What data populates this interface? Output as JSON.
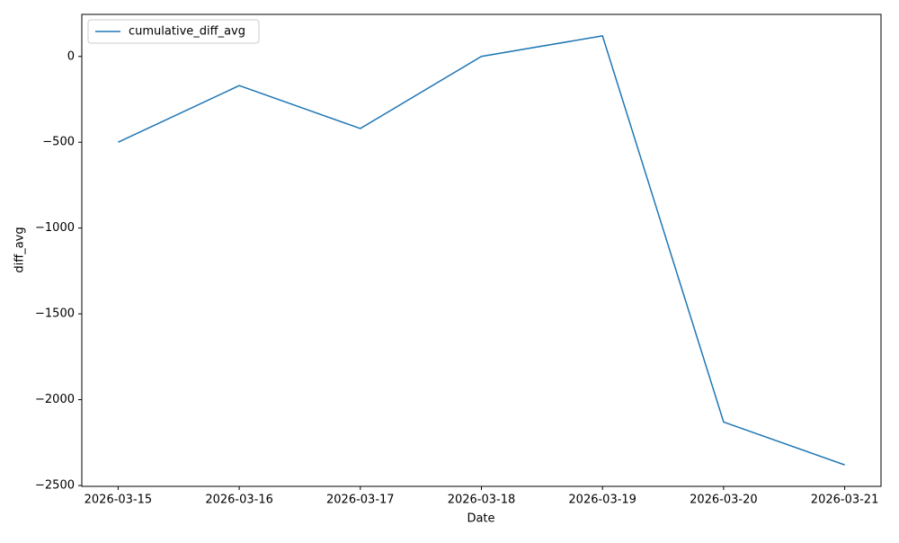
{
  "chart_data": {
    "type": "line",
    "x_label": "Date",
    "y_label": "diff_avg",
    "x": [
      "2026-03-15",
      "2026-03-16",
      "2026-03-17",
      "2026-03-18",
      "2026-03-19",
      "2026-03-20",
      "2026-03-21"
    ],
    "series": [
      {
        "name": "cumulative_diff_avg",
        "color": "#1f77b4",
        "values": [
          -500,
          -170,
          -420,
          0,
          120,
          -2130,
          -2380
        ]
      }
    ],
    "ylim": [
      -2505,
      245
    ],
    "yticks": [
      {
        "value": -2500,
        "label": "−2500"
      },
      {
        "value": -2000,
        "label": "−2000"
      },
      {
        "value": -1500,
        "label": "−1500"
      },
      {
        "value": -1000,
        "label": "−1000"
      },
      {
        "value": -500,
        "label": "−500"
      },
      0
    ],
    "legend": "upper left",
    "grid": false
  }
}
